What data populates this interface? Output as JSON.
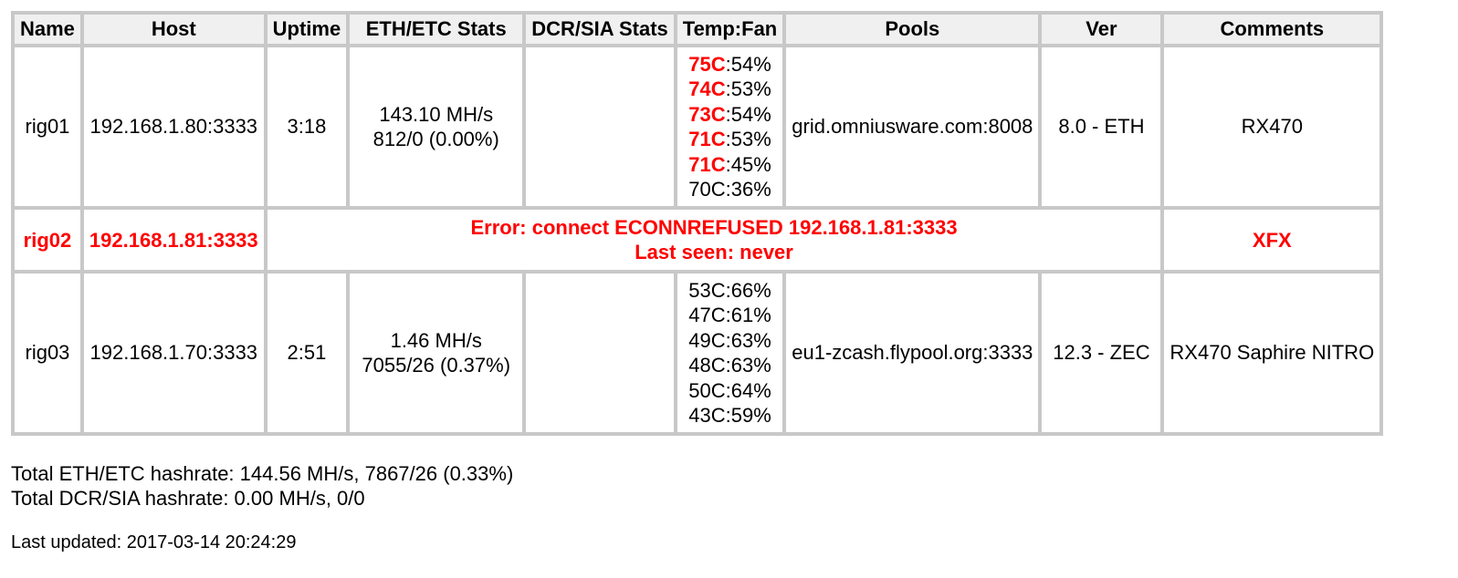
{
  "headers": [
    "Name",
    "Host",
    "Uptime",
    "ETH/ETC Stats",
    "DCR/SIA Stats",
    "Temp:Fan",
    "Pools",
    "Ver",
    "Comments"
  ],
  "rows": [
    {
      "name": "rig01",
      "host": "192.168.1.80:3333",
      "uptime": "3:18",
      "eth_hashrate": "143.10 MH/s",
      "eth_shares": "812/0 (0.00%)",
      "dcr": "",
      "temps": [
        {
          "temp": "75C",
          "fan": ":54%",
          "hot": true
        },
        {
          "temp": "74C",
          "fan": ":53%",
          "hot": true
        },
        {
          "temp": "73C",
          "fan": ":54%",
          "hot": true
        },
        {
          "temp": "71C",
          "fan": ":53%",
          "hot": true
        },
        {
          "temp": "71C",
          "fan": ":45%",
          "hot": true
        },
        {
          "temp": "70C",
          "fan": ":36%",
          "hot": false
        }
      ],
      "pool": "grid.omniusware.com:8008",
      "ver": "8.0 - ETH",
      "comment": "RX470"
    },
    {
      "name": "rig02",
      "host": "192.168.1.81:3333",
      "error": "Error: connect ECONNREFUSED 192.168.1.81:3333",
      "last_seen": "Last seen: never",
      "comment": "XFX"
    },
    {
      "name": "rig03",
      "host": "192.168.1.70:3333",
      "uptime": "2:51",
      "eth_hashrate": "1.46 MH/s",
      "eth_shares": "7055/26 (0.37%)",
      "dcr": "",
      "temps": [
        {
          "temp": "53C",
          "fan": ":66%",
          "hot": false
        },
        {
          "temp": "47C",
          "fan": ":61%",
          "hot": false
        },
        {
          "temp": "49C",
          "fan": ":63%",
          "hot": false
        },
        {
          "temp": "48C",
          "fan": ":63%",
          "hot": false
        },
        {
          "temp": "50C",
          "fan": ":64%",
          "hot": false
        },
        {
          "temp": "43C",
          "fan": ":59%",
          "hot": false
        }
      ],
      "pool": "eu1-zcash.flypool.org:3333",
      "ver": "12.3 - ZEC",
      "comment": "RX470 Saphire NITRO"
    }
  ],
  "totals": {
    "eth": "Total ETH/ETC hashrate: 144.56 MH/s, 7867/26 (0.33%)",
    "dcr": "Total DCR/SIA hashrate: 0.00 MH/s, 0/0"
  },
  "last_updated": "Last updated: 2017-03-14 20:24:29",
  "colors": {
    "error": "#ff0000",
    "border": "#c8c8c8",
    "header_bg": "#f0f0f0"
  }
}
